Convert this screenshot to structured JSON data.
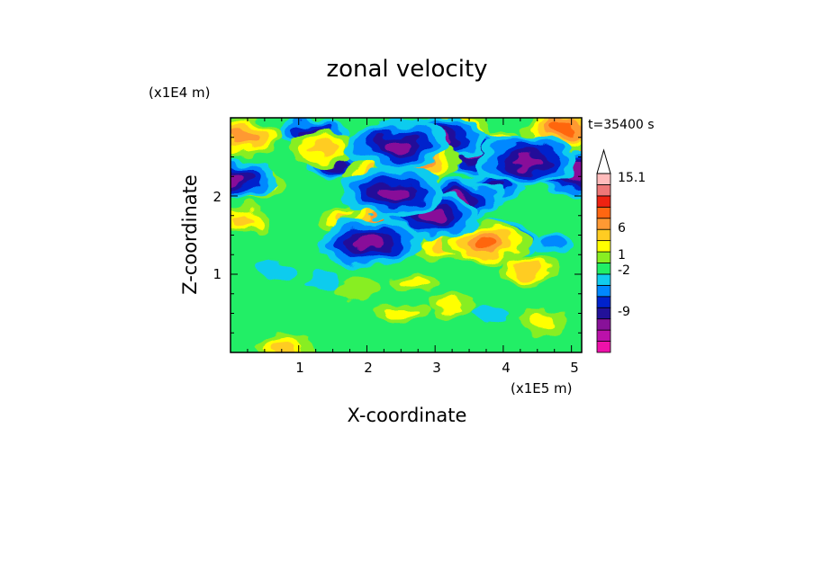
{
  "chart_data": {
    "type": "heatmap",
    "title": "zonal velocity",
    "xlabel": "X-coordinate",
    "ylabel": "Z-coordinate",
    "x_unit": "(x1E5 m)",
    "y_unit": "(x1E4 m)",
    "time_label": "t=35400 s",
    "xlim": [
      0,
      5.15
    ],
    "ylim": [
      0,
      3.0
    ],
    "x_ticks": [
      "1",
      "2",
      "3",
      "4",
      "5"
    ],
    "y_ticks": [
      "1",
      "2"
    ],
    "colorbar": {
      "labels": [
        "15.1",
        "6",
        "1",
        "-2",
        "-9"
      ],
      "levels": [
        -15,
        -12,
        -9,
        -6,
        -3,
        -2,
        -1,
        0,
        1,
        2,
        3,
        4.5,
        6,
        9,
        12,
        15.1
      ],
      "colors": [
        "#ee11aa",
        "#bb11aa",
        "#881199",
        "#221199",
        "#0022cc",
        "#0088ff",
        "#11ccee",
        "#22ee66",
        "#88ee22",
        "#ffff00",
        "#ffcc22",
        "#ff9933",
        "#ff6611",
        "#ee2211",
        "#ee7777",
        "#ffbbbb"
      ],
      "extend": "max"
    },
    "features": [
      {
        "x": 2.45,
        "z": 2.65,
        "u": -8
      },
      {
        "x": 3.05,
        "z": 2.72,
        "u": -7
      },
      {
        "x": 3.45,
        "z": 2.55,
        "u": -6
      },
      {
        "x": 4.35,
        "z": 2.45,
        "u": -8
      },
      {
        "x": 5.05,
        "z": 2.3,
        "u": -7
      },
      {
        "x": 0.05,
        "z": 2.2,
        "u": -6
      },
      {
        "x": 2.4,
        "z": 2.05,
        "u": -8
      },
      {
        "x": 2.95,
        "z": 1.75,
        "u": -7
      },
      {
        "x": 3.35,
        "z": 1.95,
        "u": -6
      },
      {
        "x": 2.05,
        "z": 1.4,
        "u": -8
      },
      {
        "x": 3.95,
        "z": 1.45,
        "u": -5
      },
      {
        "x": 1.2,
        "z": 2.8,
        "u": -4
      },
      {
        "x": 3.8,
        "z": 2.1,
        "u": -4
      },
      {
        "x": 1.55,
        "z": 2.4,
        "u": -3
      },
      {
        "x": 0.2,
        "z": 2.75,
        "u": 5
      },
      {
        "x": 0.3,
        "z": 2.15,
        "u": 4
      },
      {
        "x": 1.35,
        "z": 2.6,
        "u": 4
      },
      {
        "x": 2.7,
        "z": 2.45,
        "u": 7
      },
      {
        "x": 3.25,
        "z": 2.85,
        "u": 5
      },
      {
        "x": 4.9,
        "z": 2.85,
        "u": 6
      },
      {
        "x": 5.05,
        "z": 2.6,
        "u": 5
      },
      {
        "x": 2.25,
        "z": 1.65,
        "u": 6
      },
      {
        "x": 1.75,
        "z": 1.7,
        "u": 3
      },
      {
        "x": 3.15,
        "z": 1.35,
        "u": 4
      },
      {
        "x": 3.75,
        "z": 1.4,
        "u": 6
      },
      {
        "x": 3.95,
        "z": 2.65,
        "u": 3
      },
      {
        "x": 0.2,
        "z": 1.7,
        "u": 3
      },
      {
        "x": 2.1,
        "z": 2.3,
        "u": 3
      },
      {
        "x": 2.5,
        "z": 0.5,
        "u": 2
      },
      {
        "x": 3.2,
        "z": 0.6,
        "u": 2
      },
      {
        "x": 4.6,
        "z": 0.4,
        "u": 2
      },
      {
        "x": 4.35,
        "z": 1.05,
        "u": 3
      },
      {
        "x": 1.85,
        "z": 0.8,
        "u": 1
      },
      {
        "x": 2.7,
        "z": 0.9,
        "u": 2
      },
      {
        "x": 1.35,
        "z": 0.9,
        "u": -0.5
      },
      {
        "x": 0.65,
        "z": 1.05,
        "u": -0.5
      },
      {
        "x": 4.75,
        "z": 1.4,
        "u": -1
      },
      {
        "x": 3.8,
        "z": 0.5,
        "u": -0.5
      },
      {
        "x": 0.8,
        "z": 0.05,
        "u": 3
      }
    ]
  }
}
